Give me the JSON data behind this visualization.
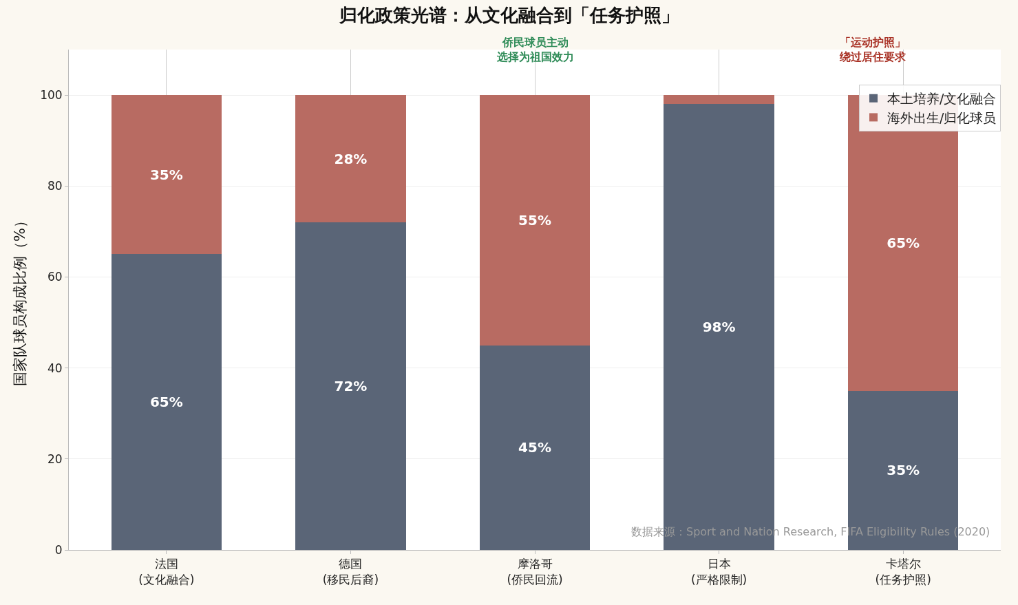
{
  "chart_data": {
    "type": "bar",
    "title": "归化政策光谱：从文化融合到「任务护照」",
    "ylabel": "国家队球员构成比例（%）",
    "categories": [
      "法国\n(文化融合)",
      "德国\n(移民后裔)",
      "摩洛哥\n(侨民回流)",
      "日本\n(严格限制)",
      "卡塔尔\n(任务护照)"
    ],
    "stacked": true,
    "series": [
      {
        "name": "本土培养/文化融合",
        "color": "#5a6577",
        "values": [
          65,
          72,
          45,
          98,
          35
        ],
        "value_labels": [
          "65%",
          "72%",
          "45%",
          "98%",
          "35%"
        ]
      },
      {
        "name": "海外出生/归化球员",
        "color": "#b86b62",
        "values": [
          35,
          28,
          55,
          2,
          65
        ],
        "value_labels": [
          "35%",
          "28%",
          "55%",
          null,
          "65%"
        ]
      }
    ],
    "ylim": [
      0,
      110
    ],
    "yticks": [
      0,
      20,
      40,
      60,
      80,
      100
    ],
    "grid": true,
    "legend": "top right",
    "annotations": [
      "侨民球员主动选择为祖国效力",
      "「运动护照」绕过居住要求",
      "数据来源：Sport and Nation Research, FIFA Eligibility Rules (2020)"
    ]
  }
}
